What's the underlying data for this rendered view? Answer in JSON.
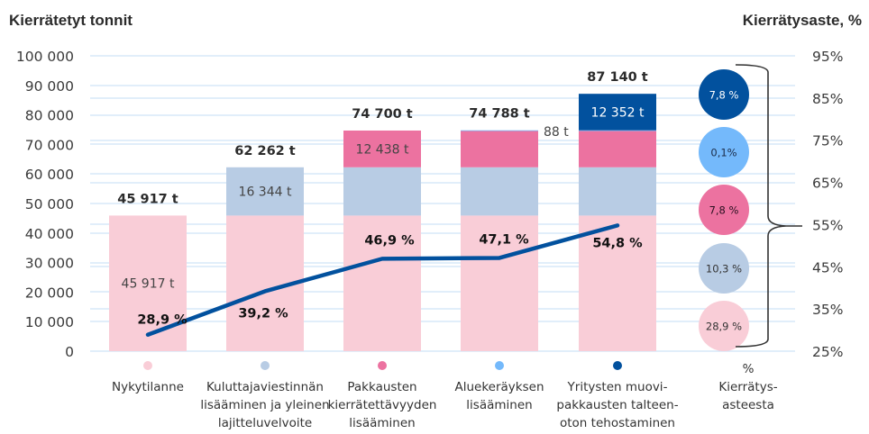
{
  "chart_data": {
    "type": "bar",
    "subtype": "stacked-bar-with-line",
    "left_axis_title": "Kierrätetyt tonnit",
    "right_axis_title": "Kierrätysaste, %",
    "ylim": [
      0,
      100000
    ],
    "y_ticks": [
      0,
      10000,
      20000,
      30000,
      40000,
      50000,
      60000,
      70000,
      80000,
      90000,
      100000
    ],
    "y_tick_labels": [
      "0",
      "10 000",
      "20 000",
      "30 000",
      "40 000",
      "50 000",
      "60 000",
      "70 000",
      "80 000",
      "90 000",
      "100 000"
    ],
    "y2lim": [
      25,
      95
    ],
    "y2_ticks": [
      25,
      35,
      45,
      55,
      65,
      75,
      85,
      95
    ],
    "y2_tick_labels": [
      "25%",
      "35%",
      "45%",
      "55%",
      "65%",
      "75%",
      "85%",
      "95%"
    ],
    "grid": true,
    "categories": [
      {
        "lines": [
          "Nykytilanne"
        ]
      },
      {
        "lines": [
          "Kuluttajaviestinnän",
          "lisääminen ja yleinen",
          "lajitteluvelvoite"
        ]
      },
      {
        "lines": [
          "Pakkausten",
          "kierrätettävyyden",
          "lisääminen"
        ]
      },
      {
        "lines": [
          "Aluekeräyksen",
          "lisääminen"
        ]
      },
      {
        "lines": [
          "Yritysten muovi-",
          "pakkausten talteen-",
          "oton tehostaminen"
        ]
      }
    ],
    "series": [
      {
        "name": "Nykytilanne",
        "color": "#f9cdd7",
        "values": [
          45917,
          45917,
          45917,
          45917,
          45917
        ]
      },
      {
        "name": "Kuluttajaviestinnän lisääminen ja yleinen lajitteluvelvoite",
        "color": "#b8cce4",
        "values": [
          0,
          16344,
          16344,
          16344,
          16344
        ]
      },
      {
        "name": "Pakkausten kierrätettävyyden lisääminen",
        "color": "#ec72a0",
        "values": [
          0,
          0,
          12438,
          12438,
          12438
        ]
      },
      {
        "name": "Aluekeräyksen lisääminen",
        "color": "#74b9fb",
        "values": [
          0,
          0,
          0,
          88,
          88
        ]
      },
      {
        "name": "Yritysten muovipakkausten talteenoton tehostaminen",
        "color": "#02519e",
        "values": [
          0,
          0,
          0,
          0,
          12352
        ]
      }
    ],
    "segment_labels": [
      {
        "bar": 0,
        "series": 0,
        "text": "45 917 t"
      },
      {
        "bar": 1,
        "series": 1,
        "text": "16 344 t"
      },
      {
        "bar": 2,
        "series": 2,
        "text": "12 438 t"
      },
      {
        "bar": 3,
        "series": 3,
        "text": "88 t",
        "outside": true
      },
      {
        "bar": 4,
        "series": 4,
        "text": "12 352 t",
        "light": true
      }
    ],
    "totals": [
      "45 917 t",
      "62 262 t",
      "74 700 t",
      "74 788 t",
      "87 140 t"
    ],
    "line": {
      "name": "Kierrätysaste",
      "color": "#02519e",
      "axis": "right",
      "values": [
        28.9,
        39.2,
        46.9,
        47.1,
        54.8
      ],
      "labels": [
        "28,9 %",
        "39,2 %",
        "46,9 %",
        "47,1 %",
        "54,8 %"
      ]
    },
    "side_breakdown": {
      "title_lines": [
        "%",
        "Kierrätys-",
        "asteesta"
      ],
      "bubbles": [
        {
          "label": "7,8 %",
          "color": "#02519e",
          "text_color": "#ffffff"
        },
        {
          "label": "0,1%",
          "color": "#74b9fb",
          "text_color": "#1c2d4a"
        },
        {
          "label": "7,8 %",
          "color": "#ec72a0",
          "text_color": "#2a1020"
        },
        {
          "label": "10,3 %",
          "color": "#b8cce4",
          "text_color": "#333333"
        },
        {
          "label": "28,9 %",
          "color": "#f9cdd7",
          "text_color": "#333333"
        }
      ],
      "brace_total": "55%"
    },
    "colors": {
      "grid": "#cfe3f7",
      "brace": "#333333"
    }
  }
}
